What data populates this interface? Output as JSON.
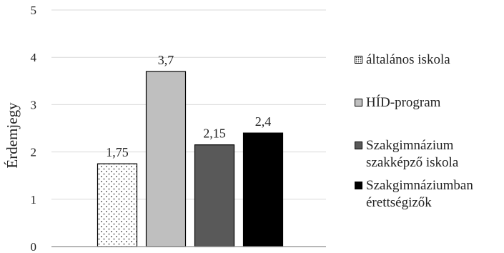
{
  "chart_data": {
    "type": "bar",
    "categories": [
      "általános iskola",
      "HÍD-program",
      "Szakgimnázium szakképző iskola",
      "Szakgimnáziumban érettségizők"
    ],
    "legend_labels": [
      "általános iskola",
      "HÍD-program",
      "Szakgimnázium\nszakképző iskola",
      "Szakgimnáziumban\nérettségizők"
    ],
    "values": [
      1.75,
      3.7,
      2.15,
      2.4
    ],
    "value_labels": [
      "1,75",
      "3,7",
      "2,15",
      "2,4"
    ],
    "colors": [
      "dotted-white",
      "#bfbfbf",
      "#595959",
      "#000000"
    ],
    "ylabel": "Érdemjegy",
    "xlabel": "",
    "ylim": [
      0,
      5
    ],
    "yticks": [
      "0",
      "1",
      "2",
      "3",
      "4",
      "5"
    ],
    "grid": true,
    "legend_position": "right"
  }
}
